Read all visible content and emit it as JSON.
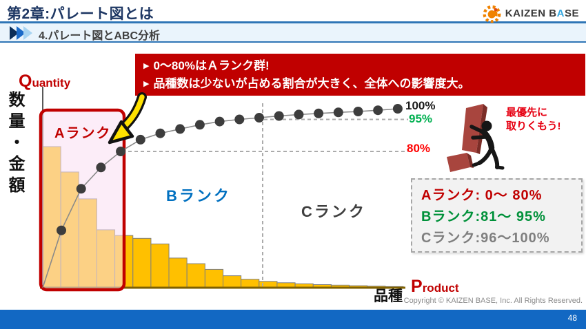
{
  "header": {
    "title": "第2章:パレート図とは",
    "section_title": "4.パレート図とABC分析"
  },
  "logo": {
    "part1": "KAIZEN B",
    "highlight": "A",
    "part2": "SE"
  },
  "callout": {
    "bullet": "▶",
    "line1": "0〜80%はＡランク群!",
    "line2": "品種数は少ないが占める割合が大きく、全体への影響度大。"
  },
  "chart": {
    "quantity_big": "Q",
    "quantity_rest": "uantity",
    "y_axis_label": "数量・金額",
    "rank_a": "Aランク",
    "rank_b": "Bランク",
    "rank_c": "Cランク",
    "tick_100": "100%",
    "tick_95": "95%",
    "tick_80": "80%",
    "x_axis_label": "品種",
    "product_big": "P",
    "product_rest": "roduct"
  },
  "legend": {
    "rows": [
      {
        "text": "Aランク: 0〜 80%",
        "color": "#C00000"
      },
      {
        "text": "Bランク:81〜 95%",
        "color": "#00913A"
      },
      {
        "text": "Cランク:96〜100%",
        "color": "#7F7F7F"
      }
    ]
  },
  "priority_note": {
    "line1": "最優先に",
    "line2": "取りくもう!"
  },
  "footer": {
    "copyright": "Copyright ©  KAIZEN BASE, Inc.  All Rights Reserved.",
    "page": "48"
  },
  "colors": {
    "accent_red": "#C00000",
    "bar_orange": "#FFC000",
    "rank_b_blue": "#0070C0",
    "rank_c_gray": "#3F3F3F",
    "tick_green": "#00B050",
    "tick_red": "#FF0000",
    "footer_blue": "#1268C3",
    "header_navy": "#1F3864"
  },
  "chart_data": {
    "type": "pareto",
    "title": "パレート図とABC分析 (schematic Pareto chart)",
    "xlabel": "品種 (Product)",
    "ylabel": "数量・金額 (Quantity)",
    "bars_pct_of_max": [
      100,
      82,
      63,
      41,
      37,
      35,
      31,
      21,
      17,
      13,
      8.5,
      6,
      4.5,
      3.5,
      2.8,
      2.2,
      1.8,
      1.4,
      1.1,
      0.8
    ],
    "cumulative_pct": [
      43,
      62.5,
      72.5,
      80,
      85.5,
      88.5,
      90.5,
      92.5,
      94,
      95,
      95.8,
      96.6,
      97.3,
      97.8,
      98.3,
      98.7,
      99.3,
      100
    ],
    "right_axis_ticks_pct": [
      100,
      95,
      80
    ],
    "rank_zones": [
      {
        "name": "Aランク",
        "range": "0〜80%"
      },
      {
        "name": "Bランク",
        "range": "81〜95%"
      },
      {
        "name": "Cランク",
        "range": "96〜100%"
      }
    ],
    "grid": "dashed threshold lines at 80% and 95%, dashed vertical B/C boundary",
    "legend_position": "right-middle"
  }
}
